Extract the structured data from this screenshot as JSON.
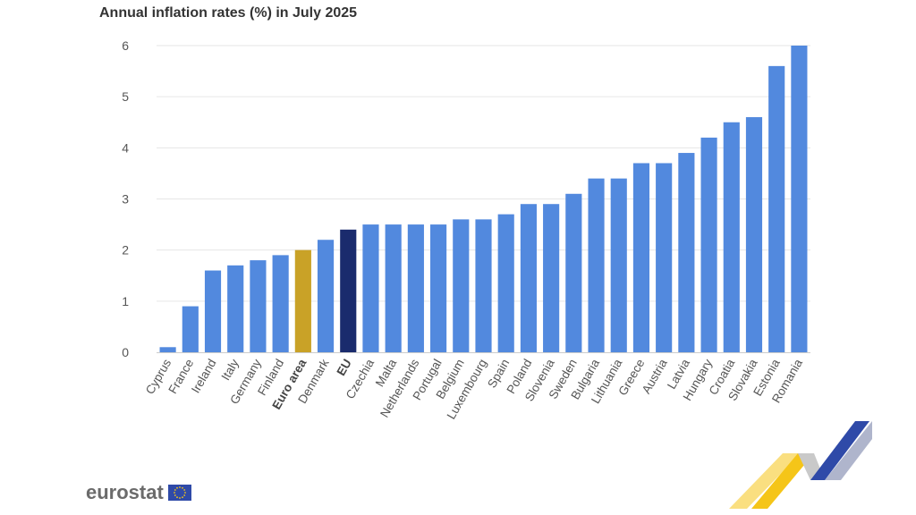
{
  "colors": {
    "bar": "#5289de",
    "euro_area": "#c9a227",
    "eu": "#1a2b6d",
    "grid": "#e6e6e6",
    "brand_blue": "#2f4aa8",
    "brand_yellow": "#f5c518"
  },
  "logo": {
    "text": "eurostat",
    "icon": "eu-flag-icon"
  },
  "chart_data": {
    "type": "bar",
    "title": "Annual inflation rates (%) in July 2025",
    "xlabel": "",
    "ylabel": "",
    "ylim": [
      0,
      6
    ],
    "yticks": [
      "0",
      "1",
      "2",
      "3",
      "4",
      "5",
      "6"
    ],
    "grid": true,
    "categories": [
      "Cyprus",
      "France",
      "Ireland",
      "Italy",
      "Germany",
      "Finland",
      "Euro area",
      "Denmark",
      "EU",
      "Czechia",
      "Malta",
      "Netherlands",
      "Portugal",
      "Belgium",
      "Luxembourg",
      "Spain",
      "Poland",
      "Slovenia",
      "Sweden",
      "Bulgaria",
      "Lithuania",
      "Greece",
      "Austria",
      "Latvia",
      "Hungary",
      "Croatia",
      "Slovakia",
      "Estonia",
      "Romania"
    ],
    "values": [
      0.1,
      0.9,
      1.6,
      1.7,
      1.8,
      1.9,
      2.0,
      2.2,
      2.4,
      2.5,
      2.5,
      2.5,
      2.5,
      2.6,
      2.6,
      2.7,
      2.9,
      2.9,
      3.1,
      3.4,
      3.4,
      3.7,
      3.7,
      3.9,
      4.2,
      4.5,
      4.6,
      5.6,
      6.0
    ],
    "highlight": {
      "Euro area": "euro_area",
      "EU": "eu"
    },
    "bold_labels": [
      "Euro area",
      "EU"
    ]
  }
}
